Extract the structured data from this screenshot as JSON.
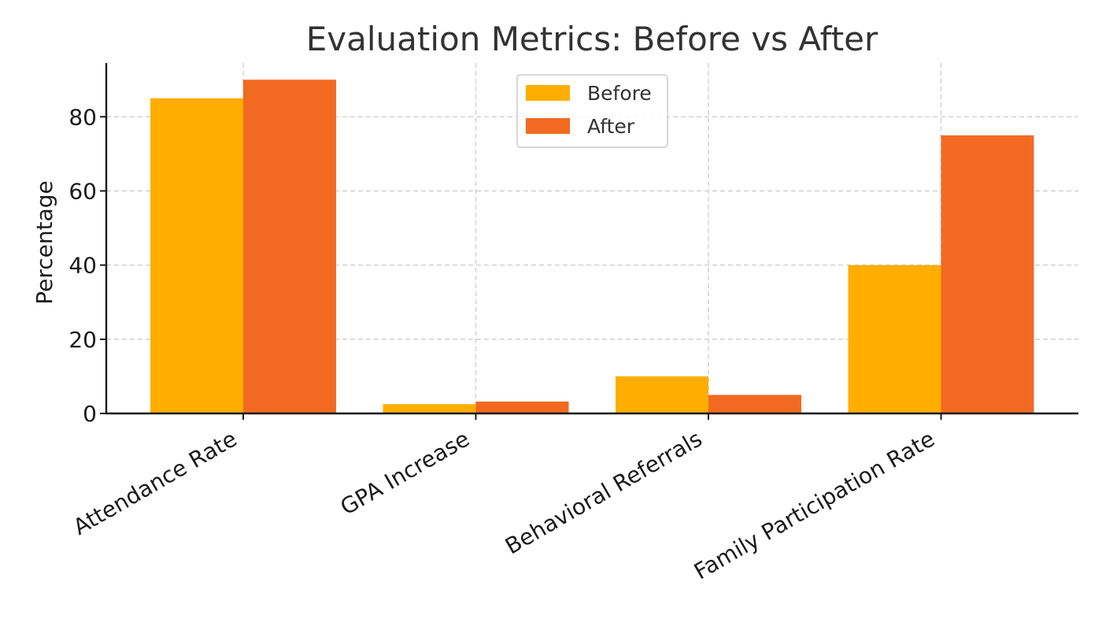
{
  "chart_data": {
    "type": "bar",
    "title": "Evaluation Metrics: Before vs After",
    "xlabel": "",
    "ylabel": "Percentage",
    "categories": [
      "Attendance Rate",
      "GPA Increase",
      "Behavioral Referrals",
      "Family Participation Rate"
    ],
    "series": [
      {
        "name": "Before",
        "values": [
          85,
          2.5,
          10,
          40
        ],
        "color": "#FFAE00"
      },
      {
        "name": "After",
        "values": [
          90,
          3.2,
          5,
          75
        ],
        "color": "#F26A21"
      }
    ],
    "ylim": [
      0,
      94.5
    ],
    "yticks": [
      "0",
      "20",
      "40",
      "60",
      "80"
    ],
    "grid": true,
    "legend": "upper-center"
  }
}
